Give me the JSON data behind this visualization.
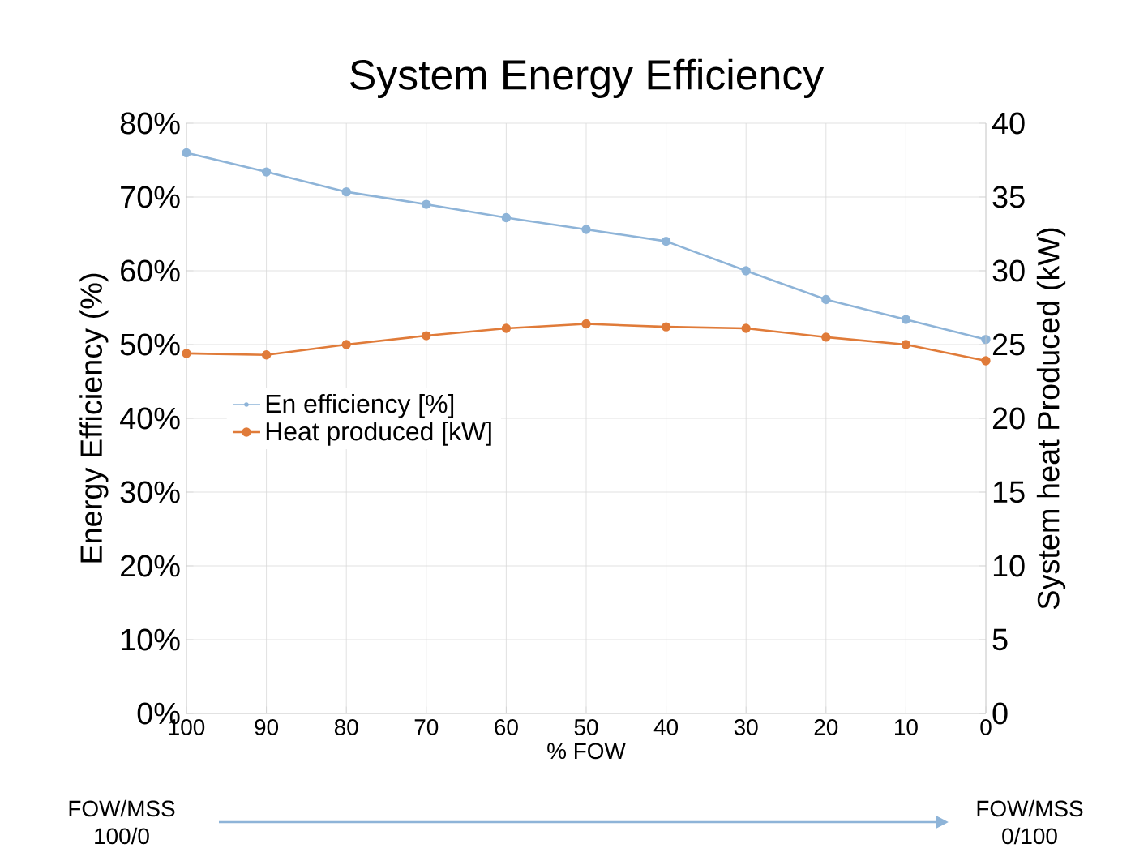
{
  "chart_data": {
    "type": "line",
    "title": "System Energy Efficiency",
    "xlabel": "% FOW",
    "ylabel": "Energy Efficiency (%)",
    "y2label": "System heat Produced (kW)",
    "x": [
      100,
      90,
      80,
      70,
      60,
      50,
      40,
      30,
      20,
      10,
      0
    ],
    "series": [
      {
        "name": "En efficiency [%]",
        "color": "#8eb4d8",
        "values": [
          76,
          73.4,
          70.7,
          69,
          67.2,
          65.6,
          64,
          60,
          56.1,
          53.4,
          50.7
        ]
      },
      {
        "name": "Heat produced [kW]",
        "color": "#e07b39",
        "axis": "y2",
        "values": [
          24.4,
          24.3,
          25,
          25.6,
          26.1,
          26.4,
          26.2,
          26.1,
          25.5,
          25,
          23.9
        ]
      }
    ],
    "xlim": [
      100,
      0
    ],
    "xticks": [
      100,
      90,
      80,
      70,
      60,
      50,
      40,
      30,
      20,
      10,
      0
    ],
    "ylim": [
      0,
      80
    ],
    "yticks": [
      {
        "value": 0,
        "label": "0%"
      },
      {
        "value": 10,
        "label": "10%"
      },
      {
        "value": 20,
        "label": "20%"
      },
      {
        "value": 30,
        "label": "30%"
      },
      {
        "value": 40,
        "label": "40%"
      },
      {
        "value": 50,
        "label": "50%"
      },
      {
        "value": 60,
        "label": "60%"
      },
      {
        "value": 70,
        "label": "70%"
      },
      {
        "value": 80,
        "label": "80%"
      }
    ],
    "y2lim": [
      0,
      40
    ],
    "y2ticks": [
      0,
      5,
      10,
      15,
      20,
      25,
      30,
      35,
      40
    ],
    "grid": true,
    "legend": "left",
    "marker": "circle",
    "line_style": "solid",
    "annotations": [
      "FOW/MSS 100/0",
      "FOW/MSS 0/100"
    ]
  }
}
